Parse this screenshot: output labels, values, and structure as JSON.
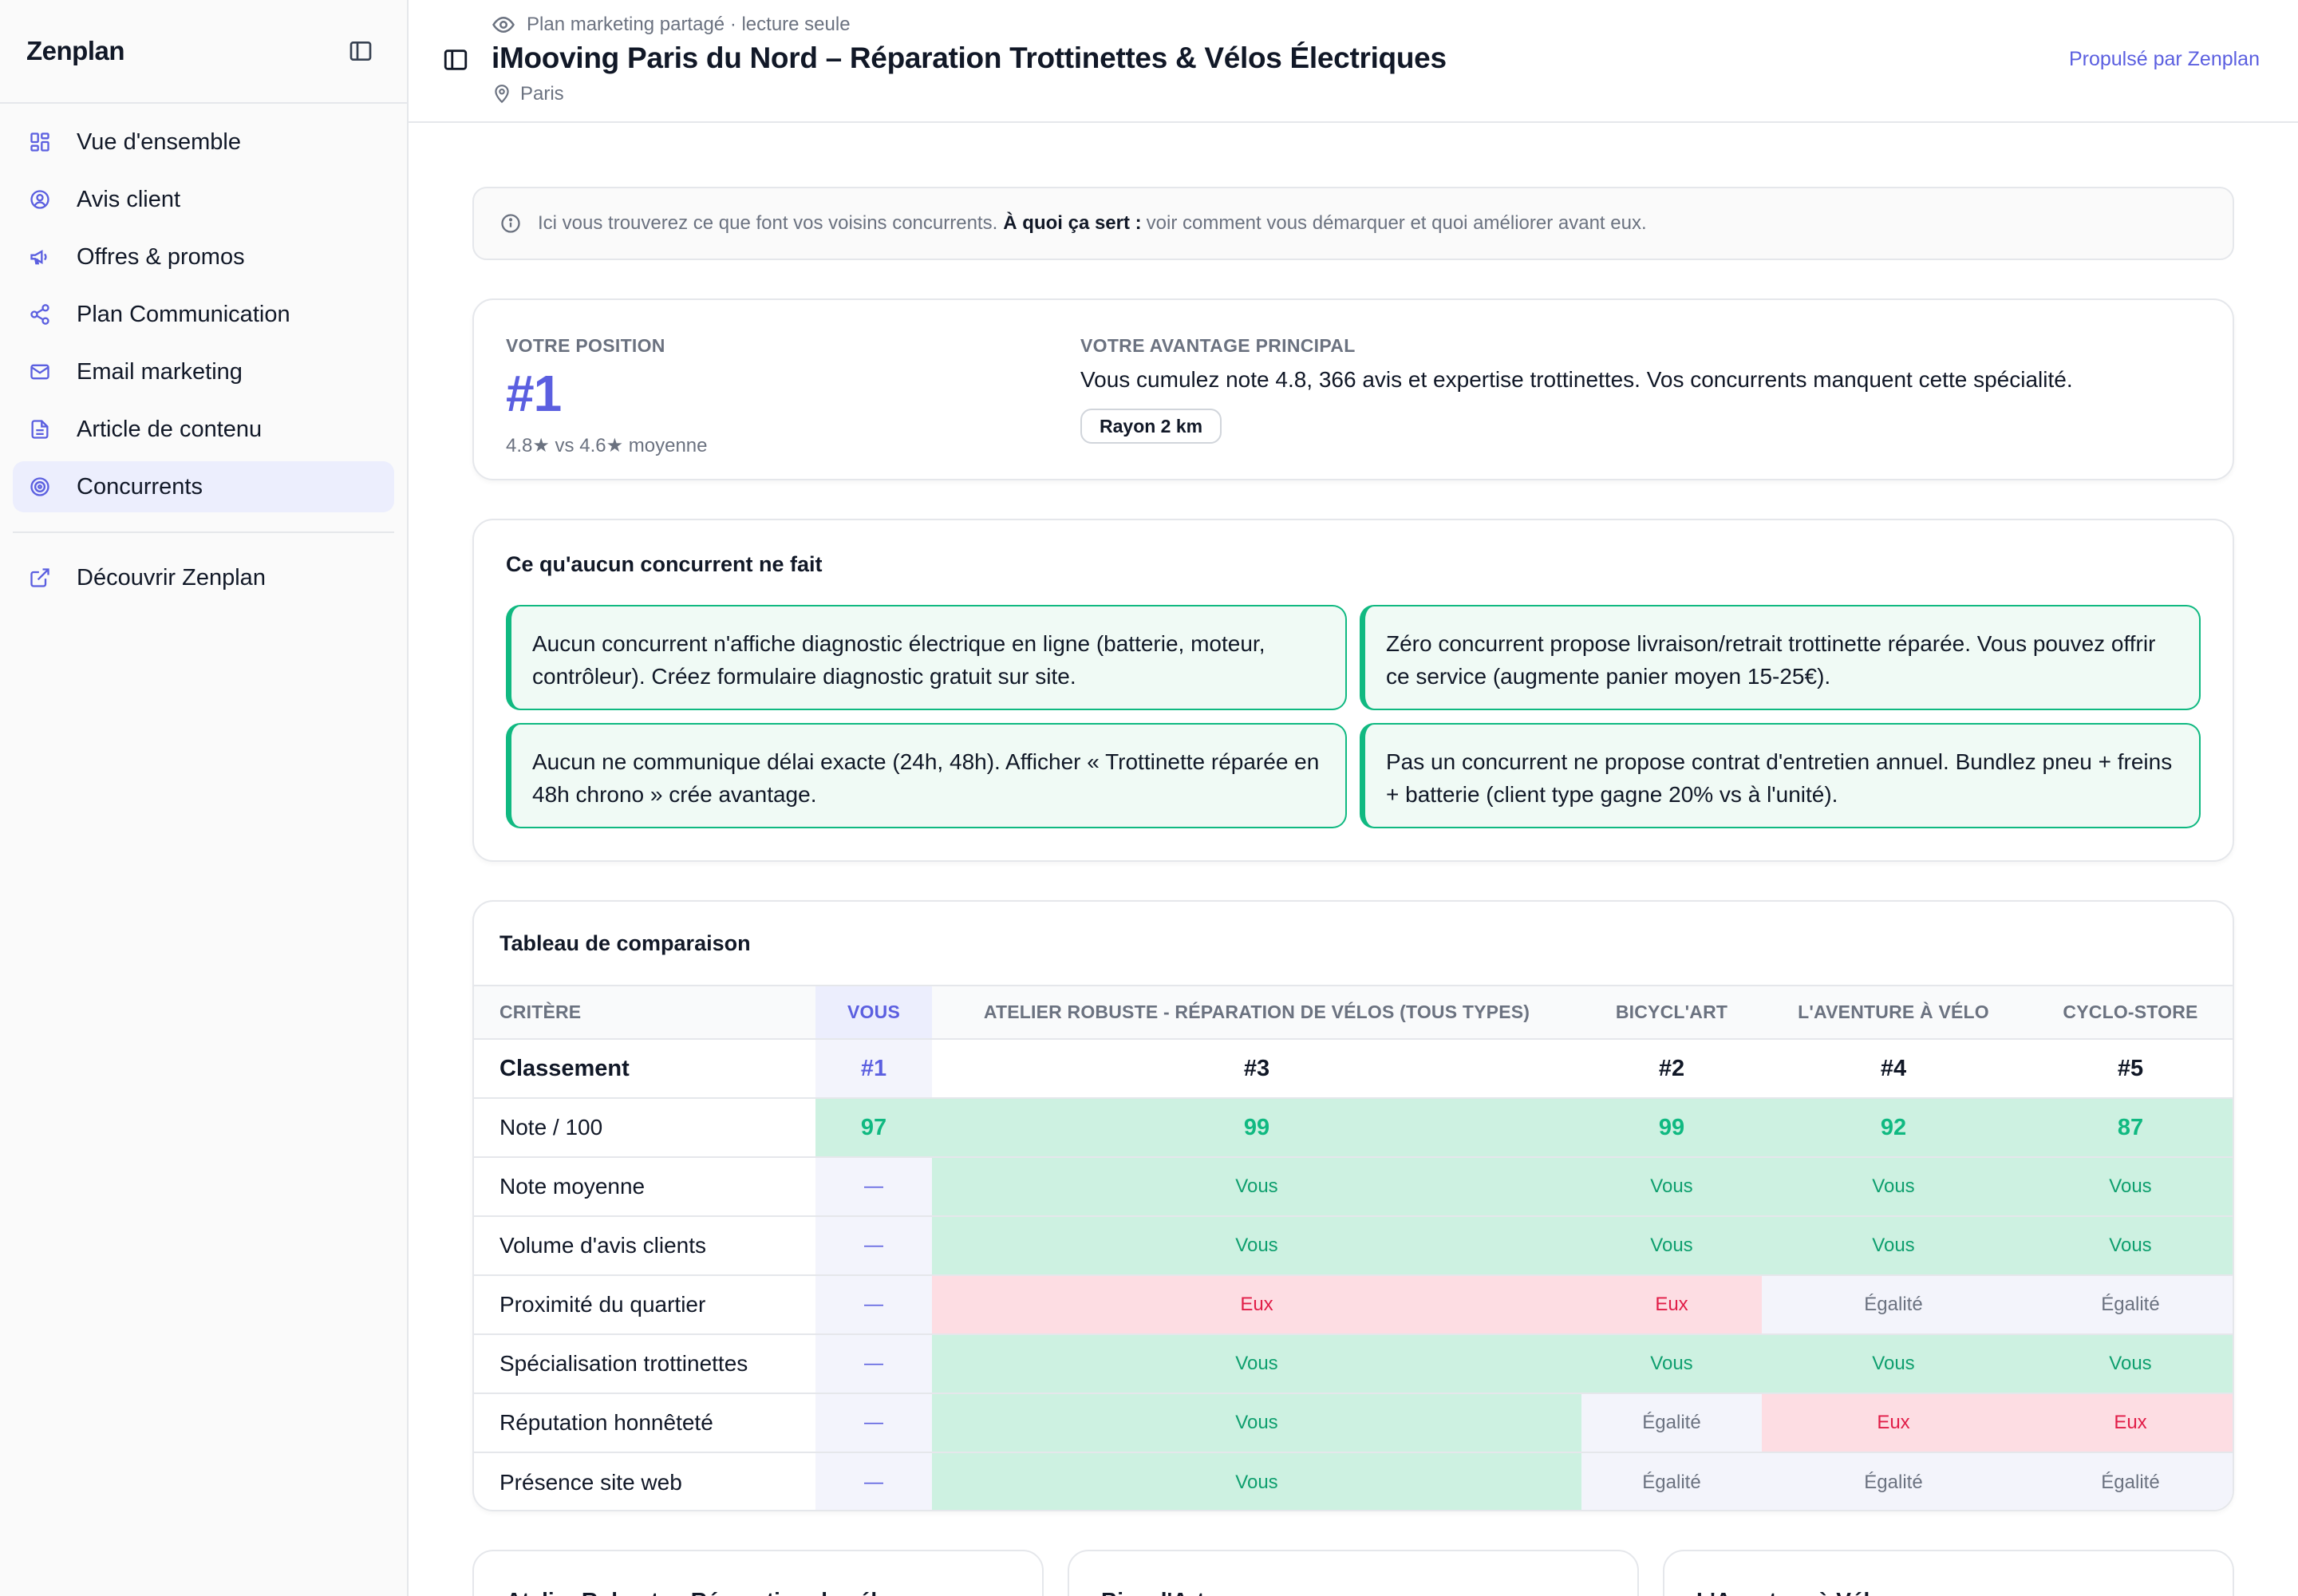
{
  "sidebar": {
    "brand": "Zenplan",
    "items": [
      {
        "label": "Vue d'ensemble",
        "icon": "grid-icon"
      },
      {
        "label": "Avis client",
        "icon": "user-circle-icon"
      },
      {
        "label": "Offres & promos",
        "icon": "megaphone-icon"
      },
      {
        "label": "Plan Communication",
        "icon": "share-icon"
      },
      {
        "label": "Email marketing",
        "icon": "mail-icon"
      },
      {
        "label": "Article de contenu",
        "icon": "document-icon"
      },
      {
        "label": "Concurrents",
        "icon": "target-icon",
        "active": true
      }
    ],
    "footer_item": {
      "label": "Découvrir Zenplan",
      "icon": "external-link-icon"
    }
  },
  "header": {
    "subtitle": "Plan marketing partagé · lecture seule",
    "title": "iMooving Paris du Nord – Réparation Trottinettes & Vélos Électriques",
    "location": "Paris",
    "powered": "Propulsé par Zenplan"
  },
  "info": {
    "text_before": "Ici vous trouverez ce que font vos voisins concurrents.",
    "strong": "À quoi ça sert :",
    "text_after": "voir comment vous démarquer et quoi améliorer avant eux."
  },
  "position": {
    "label": "VOTRE POSITION",
    "rank": "#1",
    "sub": "4.8★ vs 4.6★ moyenne",
    "advantage_label": "VOTRE AVANTAGE PRINCIPAL",
    "advantage_text": "Vous cumulez note 4.8, 366 avis et expertise trottinettes. Vos concurrents manquent cette spécialité.",
    "chip": "Rayon 2 km"
  },
  "gaps": {
    "title": "Ce qu'aucun concurrent ne fait",
    "items": [
      "Aucun concurrent n'affiche diagnostic électrique en ligne (batterie, moteur, contrôleur). Créez formulaire diagnostic gratuit sur site.",
      "Zéro concurrent propose livraison/retrait trottinette réparée. Vous pouvez offrir ce service (augmente panier moyen 15-25€).",
      "Aucun ne communique délai exacte (24h, 48h). Afficher « Trottinette réparée en 48h chrono » crée avantage.",
      "Pas un concurrent ne propose contrat d'entretien annuel. Bundlez pneu + freins + batterie (client type gagne 20% vs à l'unité)."
    ]
  },
  "comparison": {
    "title": "Tableau de comparaison",
    "headers": [
      "Critère",
      "Vous",
      "Atelier Robuste - Réparation de vélos (tous types)",
      "Bicycl'Art",
      "L'Aventure à Vélo",
      "Cyclo-Store"
    ],
    "rows": [
      {
        "label": "Classement",
        "type": "rank",
        "cells": [
          "#1",
          "#3",
          "#2",
          "#4",
          "#5"
        ]
      },
      {
        "label": "Note / 100",
        "type": "score",
        "cells": [
          "97",
          "99",
          "99",
          "92",
          "87"
        ]
      },
      {
        "label": "Note moyenne",
        "cells": [
          "—",
          "Vous",
          "Vous",
          "Vous",
          "Vous"
        ],
        "kinds": [
          "v",
          "win",
          "win",
          "win",
          "win"
        ]
      },
      {
        "label": "Volume d'avis clients",
        "cells": [
          "—",
          "Vous",
          "Vous",
          "Vous",
          "Vous"
        ],
        "kinds": [
          "v",
          "win",
          "win",
          "win",
          "win"
        ]
      },
      {
        "label": "Proximité du quartier",
        "cells": [
          "—",
          "Eux",
          "Eux",
          "Égalité",
          "Égalité"
        ],
        "kinds": [
          "v",
          "lose",
          "lose",
          "tie",
          "tie"
        ]
      },
      {
        "label": "Spécialisation trottinettes",
        "cells": [
          "—",
          "Vous",
          "Vous",
          "Vous",
          "Vous"
        ],
        "kinds": [
          "v",
          "win",
          "win",
          "win",
          "win"
        ]
      },
      {
        "label": "Réputation honnêteté",
        "cells": [
          "—",
          "Vous",
          "Égalité",
          "Eux",
          "Eux"
        ],
        "kinds": [
          "v",
          "win",
          "tie",
          "lose",
          "lose"
        ]
      },
      {
        "label": "Présence site web",
        "cells": [
          "—",
          "Vous",
          "Égalité",
          "Égalité",
          "Égalité"
        ],
        "kinds": [
          "v",
          "win",
          "tie",
          "tie",
          "tie"
        ]
      }
    ]
  },
  "competitor_cards": [
    "Atelier Robuste - Réparation de vélos",
    "Bicycl'Art",
    "L'Aventure à Vélo"
  ],
  "colors": {
    "accent": "#5b5fe0",
    "green": "#10b981",
    "red": "#e11d48"
  }
}
